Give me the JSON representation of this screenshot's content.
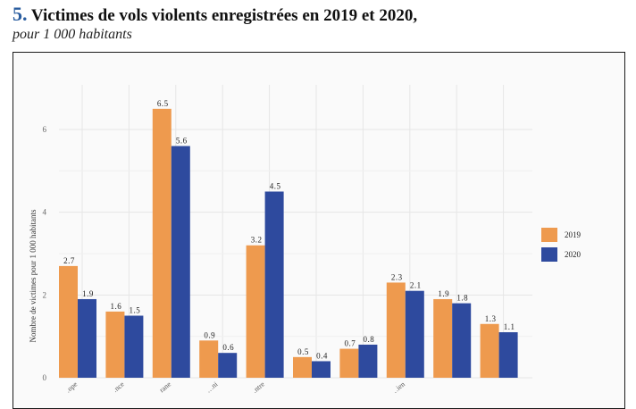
{
  "header": {
    "figure_number": "5.",
    "title": "Victimes de vols violents enregistrées en 2019 et 2020,",
    "subtitle": "pour 1 000 habitants"
  },
  "colors": {
    "s2019": "#ee9a4e",
    "s2020": "#2e4a9e",
    "grid": "#e6e6e6"
  },
  "chart_data": {
    "type": "bar",
    "title": "Victimes de vols violents enregistrées en 2019 et 2020,",
    "subtitle": "pour 1 000 habitants",
    "ylabel": "Nombre de victimes pour 1 000 habitants",
    "xlabel": "",
    "ylim": [
      0,
      7
    ],
    "yticks": [
      0,
      2,
      4,
      6
    ],
    "grid": true,
    "legend_position": "right",
    "categories": [
      "",
      "",
      "",
      "",
      "",
      "",
      "",
      "",
      "",
      ""
    ],
    "category_labels_visible": [
      "…ope",
      "…nce",
      "…rane",
      "…ni",
      "…ntre",
      "",
      "",
      "…ien",
      "",
      ""
    ],
    "series": [
      {
        "name": "2019",
        "values": [
          2.7,
          1.6,
          6.5,
          0.9,
          3.2,
          0.5,
          0.7,
          2.3,
          1.9,
          1.3
        ],
        "labels": [
          "2.7",
          "1.6",
          "6.5",
          "0.9",
          "3.2",
          "0.5",
          "0.7",
          "2.3",
          "1.9",
          "1.3"
        ]
      },
      {
        "name": "2020",
        "values": [
          1.9,
          1.5,
          5.6,
          0.6,
          4.5,
          0.4,
          0.8,
          2.1,
          1.8,
          1.1
        ],
        "labels": [
          "1.9",
          "1.5",
          "5.6",
          "0.6",
          "4.5",
          "0.4",
          "0.8",
          "2.1",
          "1.8",
          "1.1"
        ]
      }
    ]
  }
}
